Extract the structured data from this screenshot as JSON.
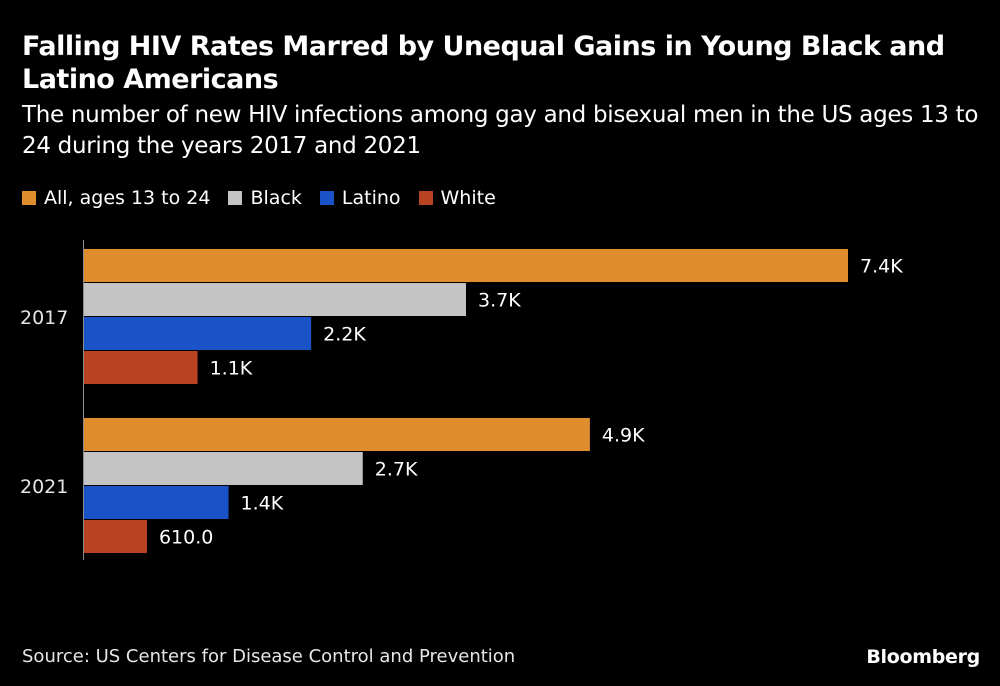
{
  "title": "Falling HIV Rates Marred by Unequal Gains in Young Black and Latino Americans",
  "subtitle": "The number of new HIV infections among gay and bisexual men in the US ages 13 to 24 during the years 2017 and 2021",
  "source": "Source: US Centers for Disease Control and Prevention",
  "brand": "Bloomberg",
  "chart_data": {
    "type": "bar",
    "orientation": "horizontal",
    "title": "Falling HIV Rates Marred by Unequal Gains in Young Black and Latino Americans",
    "xlabel": "",
    "ylabel": "",
    "grid": false,
    "legend_position": "top-left",
    "categories": [
      "2017",
      "2021"
    ],
    "series": [
      {
        "name": "All, ages 13 to 24",
        "color": "#e08d2e",
        "values": [
          7400,
          4900
        ],
        "labels": [
          "7.4K",
          "4.9K"
        ]
      },
      {
        "name": "Black",
        "color": "#c4c4c4",
        "values": [
          3700,
          2700
        ],
        "labels": [
          "3.7K",
          "2.7K"
        ]
      },
      {
        "name": "Latino",
        "color": "#1a53c7",
        "values": [
          2200,
          1400
        ],
        "labels": [
          "2.2K",
          "1.4K"
        ]
      },
      {
        "name": "White",
        "color": "#b84322",
        "values": [
          1100,
          610
        ],
        "labels": [
          "1.1K",
          "610.0"
        ]
      }
    ],
    "xlim": [
      0,
      7400
    ]
  }
}
